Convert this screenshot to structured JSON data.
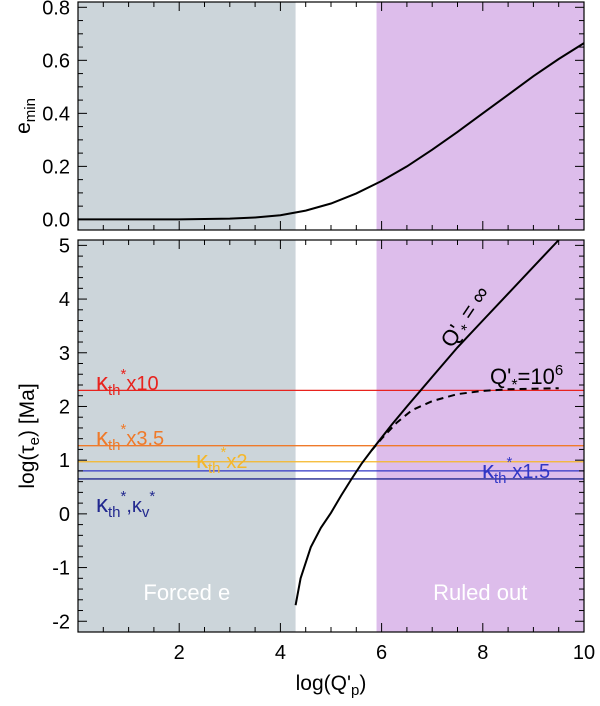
{
  "chart_data": [
    {
      "type": "line",
      "ylabel": "e",
      "ylabel_sub": "min",
      "xlim": [
        0,
        10
      ],
      "ylim": [
        -0.04,
        0.82
      ],
      "yticks": [
        "0.0",
        "0.2",
        "0.4",
        "0.6",
        "0.8"
      ],
      "ytick_values": [
        0.0,
        0.2,
        0.4,
        0.6,
        0.8
      ],
      "xticks_values": [
        2,
        4,
        6,
        8,
        10
      ],
      "regions": [
        {
          "x0": 0,
          "x1": 4.3,
          "color": "#CCD5DA"
        },
        {
          "x0": 5.9,
          "x1": 10,
          "color": "#DDBDEB"
        }
      ],
      "series": [
        {
          "x": [
            0.0,
            2.0,
            3.0,
            3.5,
            4.0,
            4.5,
            5.0,
            5.5,
            6.0,
            6.5,
            7.0,
            7.5,
            8.0,
            8.5,
            9.0,
            9.5,
            10.0
          ],
          "values": [
            0.0,
            0.0,
            0.003,
            0.007,
            0.016,
            0.033,
            0.06,
            0.098,
            0.145,
            0.2,
            0.263,
            0.33,
            0.4,
            0.47,
            0.54,
            0.605,
            0.665
          ],
          "color": "#000000",
          "dash": false
        }
      ]
    },
    {
      "type": "line",
      "xlabel": "log(Q'",
      "xlabel_sub": "p",
      "xlabel_end": ")",
      "ylabel": "log(τ",
      "ylabel_sub": "e",
      "ylabel_end": ") [Ma]",
      "xlim": [
        0,
        10
      ],
      "ylim": [
        -2.2,
        5.1
      ],
      "xticks": [
        "2",
        "4",
        "6",
        "8",
        "10"
      ],
      "xtick_values": [
        2,
        4,
        6,
        8,
        10
      ],
      "yticks": [
        "-2",
        "-1",
        "0",
        "1",
        "2",
        "3",
        "4",
        "5"
      ],
      "ytick_values": [
        -2,
        -1,
        0,
        1,
        2,
        3,
        4,
        5
      ],
      "regions": [
        {
          "x0": 0,
          "x1": 4.3,
          "color": "#CCD5DA",
          "label": "Forced e"
        },
        {
          "x0": 5.9,
          "x1": 10,
          "color": "#DDBDEB",
          "label": "Ruled out"
        }
      ],
      "hlines": [
        {
          "y": 2.3,
          "color": "#E8231E",
          "label_main": "κ",
          "label_sub": "th",
          "label_sup": "*",
          "label_rest": "x10"
        },
        {
          "y": 1.27,
          "color": "#EF7A2A",
          "label_main": "κ",
          "label_sub": "th",
          "label_sup": "*",
          "label_rest": "x3.5"
        },
        {
          "y": 0.97,
          "color": "#F5B72A",
          "label_main": "κ",
          "label_sub": "th",
          "label_sup": "*",
          "label_rest": "x2"
        },
        {
          "y": 0.8,
          "color": "#3137C6",
          "label_main": "κ",
          "label_sub": "th",
          "label_sup": "*",
          "label_rest": "x1.5"
        },
        {
          "y": 0.65,
          "color": "#22298F",
          "label_main": "κ",
          "label_sub": "th",
          "label_sup": "*",
          "label_rest": ",κ",
          "label_sub2": "v",
          "label_sup2": "*"
        }
      ],
      "series": [
        {
          "name_main": "Q'",
          "name_sub": "*",
          "name_rest": " = ∞",
          "x": [
            4.3,
            4.4,
            4.6,
            4.8,
            5.0,
            5.2,
            5.4,
            5.6,
            5.8,
            6.0,
            6.2,
            6.5,
            7.0,
            7.5,
            8.0,
            8.5,
            9.0,
            9.5
          ],
          "values": [
            -1.7,
            -1.2,
            -0.62,
            -0.26,
            0.02,
            0.34,
            0.64,
            0.93,
            1.18,
            1.42,
            1.66,
            2.0,
            2.55,
            3.1,
            3.6,
            4.1,
            4.6,
            5.1
          ],
          "color": "#000000",
          "dash": false
        },
        {
          "name_main": "Q'",
          "name_sub": "*",
          "name_rest": "=10",
          "name_sup": "6",
          "x": [
            5.8,
            6.0,
            6.3,
            6.6,
            7.0,
            7.5,
            8.0,
            8.5,
            9.0,
            9.5
          ],
          "values": [
            1.18,
            1.4,
            1.7,
            1.93,
            2.1,
            2.23,
            2.29,
            2.32,
            2.33,
            2.34
          ],
          "color": "#000000",
          "dash": true
        }
      ]
    }
  ]
}
